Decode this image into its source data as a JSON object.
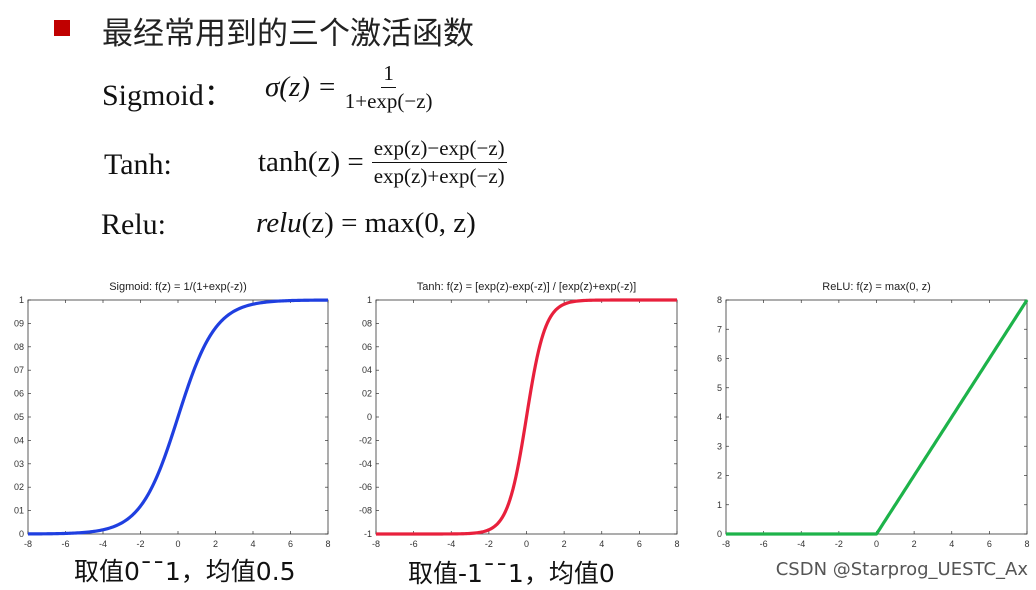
{
  "heading": "最经常用到的三个激活函数",
  "formulas": {
    "sigmoid": {
      "name": "Sigmoid：",
      "lhs": "σ(z) =",
      "num": "1",
      "den": "1+exp(−z)"
    },
    "tanh": {
      "name": "Tanh:",
      "lhs": "tanh(z) =",
      "num": "exp(z)−exp(−z)",
      "den": "exp(z)+exp(−z)"
    },
    "relu": {
      "name": "Relu:",
      "lhs_italic": "relu",
      "rhs": "(z) = max(0, z)"
    }
  },
  "captions": {
    "sigmoid": "取值0¯¯1，均值0.5",
    "tanh": "取值-1¯¯1，均值0"
  },
  "watermark": "CSDN @Starprog_UESTC_Ax",
  "colors": {
    "bullet": "#c00000",
    "sigmoid": "#1f3fe0",
    "tanh": "#e8203c",
    "relu": "#1db34a"
  },
  "chart_data": [
    {
      "type": "line",
      "title": "Sigmoid:   f(z) = 1/(1+exp(-z))",
      "function": "sigmoid",
      "xlim": [
        -8,
        8
      ],
      "ylim": [
        0,
        1
      ],
      "xticks": [
        "-8",
        "-6",
        "-4",
        "-2",
        "0",
        "2",
        "4",
        "6",
        "8"
      ],
      "yticks": [
        "0",
        "0.1",
        "0.2",
        "0.3",
        "0.4",
        "0.5",
        "0.6",
        "0.7",
        "0.8",
        "0.9",
        "1"
      ],
      "xticks_v": [
        -8,
        -6,
        -4,
        -2,
        0,
        2,
        4,
        6,
        8
      ],
      "yticks_v": [
        0,
        0.1,
        0.2,
        0.3,
        0.4,
        0.5,
        0.6,
        0.7,
        0.8,
        0.9,
        1
      ],
      "ytick_labels": [
        "0",
        "01",
        "02",
        "03",
        "04",
        "05",
        "06",
        "07",
        "08",
        "09",
        "1"
      ],
      "color": "#1f3fe0"
    },
    {
      "type": "line",
      "title": "Tanh:   f(z) = [exp(z)-exp(-z)] / [exp(z)+exp(-z)]",
      "function": "tanh",
      "xlim": [
        -8,
        8
      ],
      "ylim": [
        -1,
        1
      ],
      "xticks_v": [
        -8,
        -6,
        -4,
        -2,
        0,
        2,
        4,
        6,
        8
      ],
      "xticks": [
        "-8",
        "-6",
        "-4",
        "-2",
        "0",
        "2",
        "4",
        "6",
        "8"
      ],
      "yticks_v": [
        -1,
        -0.8,
        -0.6,
        -0.4,
        -0.2,
        0,
        0.2,
        0.4,
        0.6,
        0.8,
        1
      ],
      "ytick_labels": [
        "-1",
        "-08",
        "-06",
        "-04",
        "-02",
        "0",
        "02",
        "04",
        "06",
        "08",
        "1"
      ],
      "color": "#e8203c"
    },
    {
      "type": "line",
      "title": "ReLU:   f(z) = max(0, z)",
      "function": "relu",
      "xlim": [
        -8,
        8
      ],
      "ylim": [
        0,
        8
      ],
      "xticks_v": [
        -8,
        -6,
        -4,
        -2,
        0,
        2,
        4,
        6,
        8
      ],
      "xticks": [
        "-8",
        "-6",
        "-4",
        "-2",
        "0",
        "2",
        "4",
        "6",
        "8"
      ],
      "yticks_v": [
        0,
        1,
        2,
        3,
        4,
        5,
        6,
        7,
        8
      ],
      "ytick_labels": [
        "0",
        "1",
        "2",
        "3",
        "4",
        "5",
        "6",
        "7",
        "8"
      ],
      "color": "#1db34a"
    }
  ]
}
